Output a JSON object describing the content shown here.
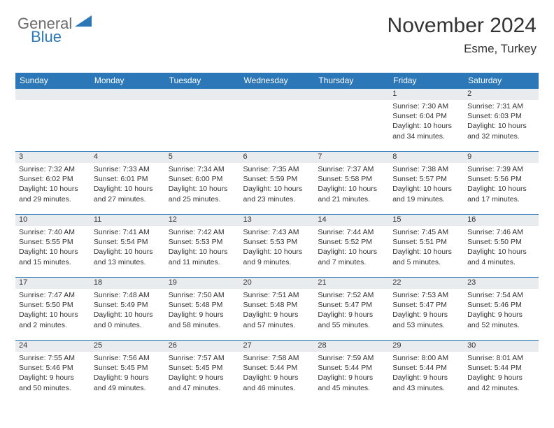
{
  "logo": {
    "text1": "General",
    "text2": "Blue",
    "icon_color": "#2b77b8"
  },
  "header": {
    "month_title": "November 2024",
    "location": "Esme, Turkey"
  },
  "style": {
    "header_bg": "#2b77b8",
    "header_text_color": "#ffffff",
    "daynum_bg": "#e9ecee",
    "cell_border": "#2b77b8",
    "body_bg": "#ffffff",
    "text_color": "#333333",
    "logo_gray": "#6b6b6b",
    "month_fontsize": 30,
    "location_fontsize": 17,
    "header_fontsize": 12,
    "cell_fontsize": 10.5
  },
  "days_of_week": [
    "Sunday",
    "Monday",
    "Tuesday",
    "Wednesday",
    "Thursday",
    "Friday",
    "Saturday"
  ],
  "grid": {
    "columns": 7,
    "rows": 5,
    "first_day_column": 5,
    "days": [
      {
        "n": 1,
        "sunrise": "7:30 AM",
        "sunset": "6:04 PM",
        "daylight": "10 hours and 34 minutes."
      },
      {
        "n": 2,
        "sunrise": "7:31 AM",
        "sunset": "6:03 PM",
        "daylight": "10 hours and 32 minutes."
      },
      {
        "n": 3,
        "sunrise": "7:32 AM",
        "sunset": "6:02 PM",
        "daylight": "10 hours and 29 minutes."
      },
      {
        "n": 4,
        "sunrise": "7:33 AM",
        "sunset": "6:01 PM",
        "daylight": "10 hours and 27 minutes."
      },
      {
        "n": 5,
        "sunrise": "7:34 AM",
        "sunset": "6:00 PM",
        "daylight": "10 hours and 25 minutes."
      },
      {
        "n": 6,
        "sunrise": "7:35 AM",
        "sunset": "5:59 PM",
        "daylight": "10 hours and 23 minutes."
      },
      {
        "n": 7,
        "sunrise": "7:37 AM",
        "sunset": "5:58 PM",
        "daylight": "10 hours and 21 minutes."
      },
      {
        "n": 8,
        "sunrise": "7:38 AM",
        "sunset": "5:57 PM",
        "daylight": "10 hours and 19 minutes."
      },
      {
        "n": 9,
        "sunrise": "7:39 AM",
        "sunset": "5:56 PM",
        "daylight": "10 hours and 17 minutes."
      },
      {
        "n": 10,
        "sunrise": "7:40 AM",
        "sunset": "5:55 PM",
        "daylight": "10 hours and 15 minutes."
      },
      {
        "n": 11,
        "sunrise": "7:41 AM",
        "sunset": "5:54 PM",
        "daylight": "10 hours and 13 minutes."
      },
      {
        "n": 12,
        "sunrise": "7:42 AM",
        "sunset": "5:53 PM",
        "daylight": "10 hours and 11 minutes."
      },
      {
        "n": 13,
        "sunrise": "7:43 AM",
        "sunset": "5:53 PM",
        "daylight": "10 hours and 9 minutes."
      },
      {
        "n": 14,
        "sunrise": "7:44 AM",
        "sunset": "5:52 PM",
        "daylight": "10 hours and 7 minutes."
      },
      {
        "n": 15,
        "sunrise": "7:45 AM",
        "sunset": "5:51 PM",
        "daylight": "10 hours and 5 minutes."
      },
      {
        "n": 16,
        "sunrise": "7:46 AM",
        "sunset": "5:50 PM",
        "daylight": "10 hours and 4 minutes."
      },
      {
        "n": 17,
        "sunrise": "7:47 AM",
        "sunset": "5:50 PM",
        "daylight": "10 hours and 2 minutes."
      },
      {
        "n": 18,
        "sunrise": "7:48 AM",
        "sunset": "5:49 PM",
        "daylight": "10 hours and 0 minutes."
      },
      {
        "n": 19,
        "sunrise": "7:50 AM",
        "sunset": "5:48 PM",
        "daylight": "9 hours and 58 minutes."
      },
      {
        "n": 20,
        "sunrise": "7:51 AM",
        "sunset": "5:48 PM",
        "daylight": "9 hours and 57 minutes."
      },
      {
        "n": 21,
        "sunrise": "7:52 AM",
        "sunset": "5:47 PM",
        "daylight": "9 hours and 55 minutes."
      },
      {
        "n": 22,
        "sunrise": "7:53 AM",
        "sunset": "5:47 PM",
        "daylight": "9 hours and 53 minutes."
      },
      {
        "n": 23,
        "sunrise": "7:54 AM",
        "sunset": "5:46 PM",
        "daylight": "9 hours and 52 minutes."
      },
      {
        "n": 24,
        "sunrise": "7:55 AM",
        "sunset": "5:46 PM",
        "daylight": "9 hours and 50 minutes."
      },
      {
        "n": 25,
        "sunrise": "7:56 AM",
        "sunset": "5:45 PM",
        "daylight": "9 hours and 49 minutes."
      },
      {
        "n": 26,
        "sunrise": "7:57 AM",
        "sunset": "5:45 PM",
        "daylight": "9 hours and 47 minutes."
      },
      {
        "n": 27,
        "sunrise": "7:58 AM",
        "sunset": "5:44 PM",
        "daylight": "9 hours and 46 minutes."
      },
      {
        "n": 28,
        "sunrise": "7:59 AM",
        "sunset": "5:44 PM",
        "daylight": "9 hours and 45 minutes."
      },
      {
        "n": 29,
        "sunrise": "8:00 AM",
        "sunset": "5:44 PM",
        "daylight": "9 hours and 43 minutes."
      },
      {
        "n": 30,
        "sunrise": "8:01 AM",
        "sunset": "5:44 PM",
        "daylight": "9 hours and 42 minutes."
      }
    ]
  },
  "labels": {
    "sunrise": "Sunrise:",
    "sunset": "Sunset:",
    "daylight": "Daylight:"
  }
}
